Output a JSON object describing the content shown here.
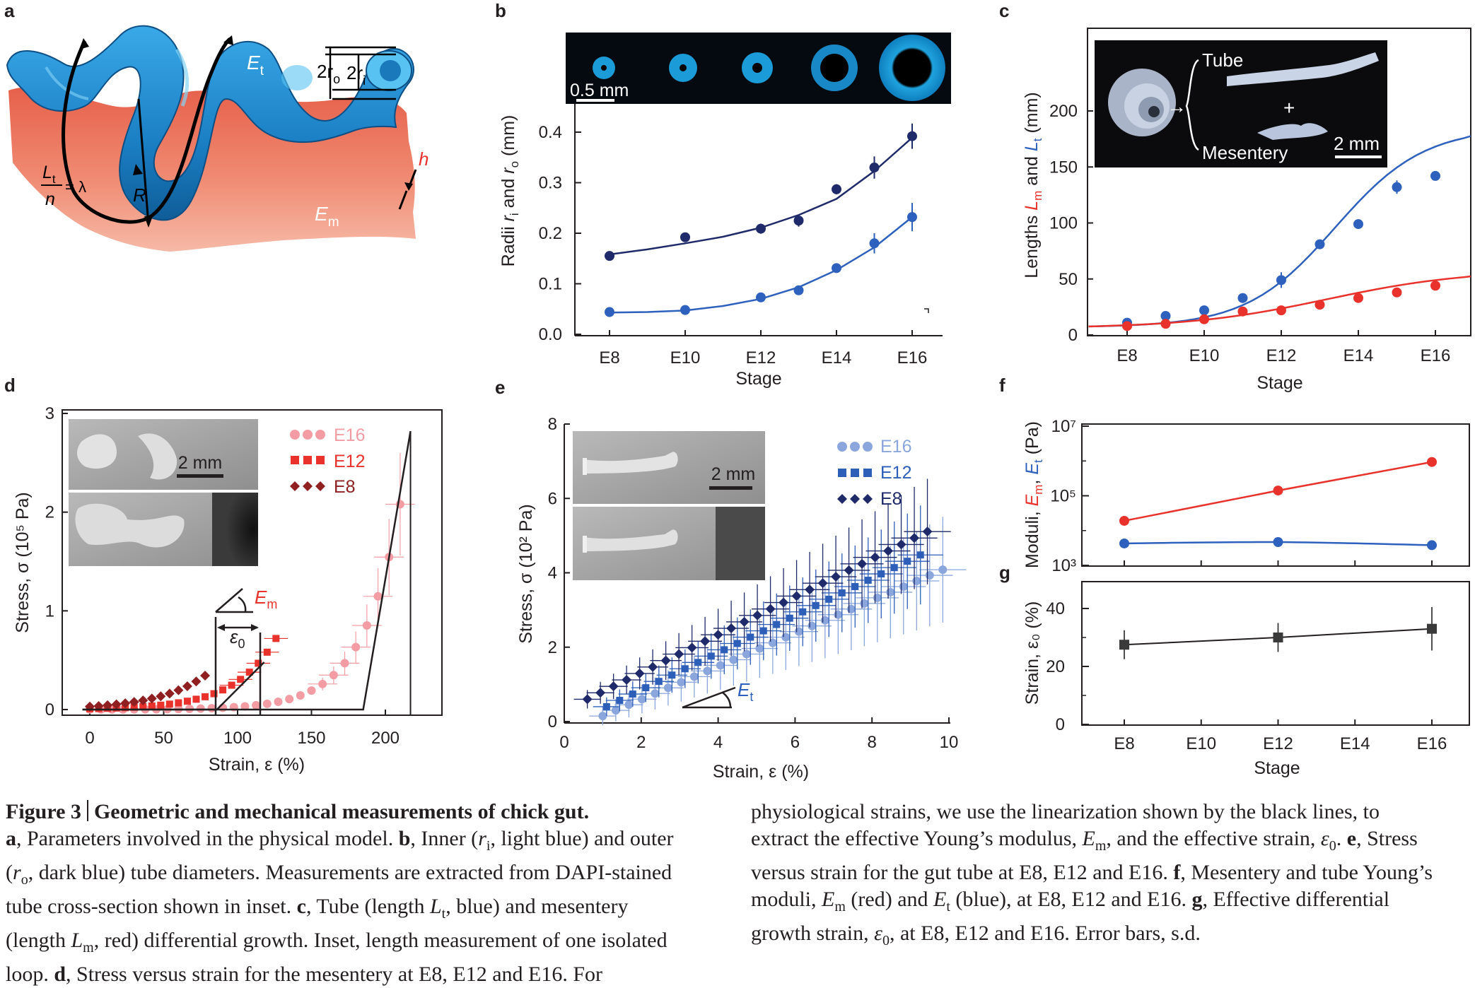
{
  "panels": {
    "a": "a",
    "b": "b",
    "c": "c",
    "d": "d",
    "e": "e",
    "f": "f",
    "g": "g"
  },
  "panel_a": {
    "labels": {
      "Et": "E",
      "Et_sub": "t",
      "Em": "E",
      "Em_sub": "m",
      "R": "R",
      "h": "h",
      "ro": "2r",
      "ro_sub": "o",
      "ri": "2r",
      "ri_sub": "i",
      "Lt": "L",
      "Lt_sub": "t",
      "n": "n",
      "lambda": "= λ"
    },
    "colors": {
      "tube": "#1d8fd0",
      "mesentery": "#ee7d62",
      "red_label": "#e8322b"
    }
  },
  "panel_b": {
    "inset_scale": "0.5 mm",
    "ylabel_parts": [
      "Radii ",
      "r",
      "i",
      " and ",
      "r",
      "o",
      " (mm)"
    ],
    "xlabel": "Stage"
  },
  "panel_c": {
    "inset_tube": "Tube",
    "inset_mesentery": "Mesentery",
    "inset_plus": "+",
    "inset_scale": "2 mm",
    "ylabel_parts": [
      "Lengths ",
      "L",
      "m",
      " and ",
      "L",
      "t",
      " (mm)"
    ],
    "xlabel": "Stage"
  },
  "panel_d": {
    "legend": [
      "E16",
      "E12",
      "E8"
    ],
    "inset_scale": "2 mm",
    "Em_label": "E",
    "Em_sub": "m",
    "eps0_label": "ε",
    "eps0_sub": "0",
    "ylabel": "Stress, σ (10⁵ Pa)",
    "xlabel": "Strain, ε (%)"
  },
  "panel_e": {
    "legend": [
      "E16",
      "E12",
      "E8"
    ],
    "inset_scale": "2 mm",
    "Et_label": "E",
    "Et_sub": "t",
    "ylabel": "Stress, σ (10² Pa)",
    "xlabel": "Strain, ε (%)"
  },
  "panel_f": {
    "ylabel_parts": [
      "Moduli, ",
      "E",
      "m",
      ", ",
      "E",
      "t",
      " (Pa)"
    ]
  },
  "panel_g": {
    "ylabel": "Strain, ε₀ (%)",
    "xlabel": "Stage"
  },
  "chart_data": [
    {
      "panel": "b",
      "type": "line",
      "x": [
        "E8",
        "E10",
        "E12",
        "E13",
        "E14",
        "E15",
        "E16"
      ],
      "xticks": [
        "E8",
        "E10",
        "E12",
        "E14",
        "E16"
      ],
      "xlabel": "Stage",
      "ylabel": "Radii ri and ro (mm)",
      "ylim": [
        0,
        0.42
      ],
      "yticks": [
        "0.0",
        "0.1",
        "0.2",
        "0.3",
        "0.4"
      ],
      "series": [
        {
          "name": "ro",
          "color": "#1f2a6b",
          "points": [
            [
              8,
              0.155,
              0
            ],
            [
              10,
              0.192,
              0
            ],
            [
              12,
              0.209,
              0.01
            ],
            [
              13,
              0.225,
              0.012
            ],
            [
              14,
              0.287,
              0.01
            ],
            [
              15,
              0.33,
              0.022
            ],
            [
              16,
              0.392,
              0.025
            ]
          ],
          "fit": [
            [
              8,
              0.158
            ],
            [
              9,
              0.168
            ],
            [
              10,
              0.18
            ],
            [
              11,
              0.193
            ],
            [
              12,
              0.211
            ],
            [
              13,
              0.236
            ],
            [
              14,
              0.268
            ],
            [
              15,
              0.323
            ],
            [
              16,
              0.389
            ]
          ]
        },
        {
          "name": "ri",
          "color": "#2e60bd",
          "points": [
            [
              8,
              0.044,
              0
            ],
            [
              10,
              0.048,
              0
            ],
            [
              12,
              0.073,
              0
            ],
            [
              13,
              0.087,
              0
            ],
            [
              14,
              0.131,
              0
            ],
            [
              15,
              0.18,
              0.02
            ],
            [
              16,
              0.232,
              0.028
            ]
          ],
          "fit": [
            [
              8,
              0.043
            ],
            [
              9,
              0.044
            ],
            [
              10,
              0.047
            ],
            [
              11,
              0.056
            ],
            [
              12,
              0.07
            ],
            [
              13,
              0.093
            ],
            [
              14,
              0.127
            ],
            [
              15,
              0.172
            ],
            [
              16,
              0.232
            ]
          ]
        }
      ]
    },
    {
      "panel": "c",
      "type": "line",
      "xticks": [
        "E8",
        "E10",
        "E12",
        "E14",
        "E16"
      ],
      "xlabel": "Stage",
      "ylabel": "Lengths Lm and Lt (mm)",
      "ylim": [
        0,
        220
      ],
      "yticks": [
        "0",
        "50",
        "100",
        "150",
        "200"
      ],
      "series": [
        {
          "name": "Lt",
          "color": "#2e60bd",
          "points": [
            [
              8,
              11,
              0
            ],
            [
              9,
              17,
              0
            ],
            [
              10,
              22,
              0
            ],
            [
              11,
              33,
              0
            ],
            [
              12,
              49,
              7
            ],
            [
              13,
              81,
              0
            ],
            [
              14,
              99,
              0
            ],
            [
              15,
              132,
              6
            ],
            [
              16,
              142,
              0
            ]
          ]
        },
        {
          "name": "Lm",
          "color": "#e8322b",
          "points": [
            [
              8,
              8,
              0
            ],
            [
              9,
              10,
              0
            ],
            [
              10,
              14,
              0
            ],
            [
              11,
              21,
              0
            ],
            [
              12,
              22,
              0
            ],
            [
              13,
              27,
              0
            ],
            [
              14,
              33,
              0
            ],
            [
              15,
              38,
              0
            ],
            [
              16,
              44,
              0
            ]
          ]
        }
      ]
    },
    {
      "panel": "d",
      "type": "scatter",
      "xlabel": "Strain, ε (%)",
      "ylabel": "Stress, σ (10⁵ Pa)",
      "xlim": [
        -10,
        230
      ],
      "ylim": [
        -0.05,
        3.02
      ],
      "xticks": [
        "0",
        "50",
        "100",
        "150",
        "200"
      ],
      "yticks": [
        "0",
        "1",
        "2",
        "3"
      ],
      "series": [
        {
          "name": "E16",
          "color": "#f49ca4"
        },
        {
          "name": "E12",
          "color": "#e8322b"
        },
        {
          "name": "E8",
          "color": "#8f1f21"
        }
      ]
    },
    {
      "panel": "e",
      "type": "scatter",
      "xlabel": "Strain, ε (%)",
      "ylabel": "Stress, σ (10² Pa)",
      "xlim": [
        0,
        10
      ],
      "ylim": [
        0,
        8
      ],
      "xticks": [
        "0",
        "2",
        "4",
        "6",
        "8",
        "10"
      ],
      "yticks": [
        "0",
        "2",
        "4",
        "6",
        "8"
      ],
      "series": [
        {
          "name": "E16",
          "color": "#8aa6dc"
        },
        {
          "name": "E12",
          "color": "#2e5fb8"
        },
        {
          "name": "E8",
          "color": "#1f2a6b"
        }
      ]
    },
    {
      "panel": "f",
      "type": "line",
      "yscale": "log",
      "xticks": [
        "E8",
        "E12",
        "E16"
      ],
      "ylabel": "Moduli, Em, Et (Pa)",
      "yticks": [
        "10³",
        "10⁵",
        "10⁷"
      ],
      "series": [
        {
          "name": "Em",
          "color": "#e8322b",
          "x": [
            "E8",
            "E12",
            "E16"
          ],
          "log10_values": [
            4.28,
            5.15,
            5.97
          ]
        },
        {
          "name": "Et",
          "color": "#2e60bd",
          "x": [
            "E8",
            "E12",
            "E16"
          ],
          "log10_values": [
            3.63,
            3.67,
            3.58
          ]
        }
      ]
    },
    {
      "panel": "g",
      "type": "line",
      "xticks": [
        "E8",
        "E10",
        "E12",
        "E14",
        "E16"
      ],
      "xlabel": "Stage",
      "ylabel": "Strain, ε0 (%)",
      "ylim": [
        0,
        50
      ],
      "yticks": [
        "0",
        "20",
        "40"
      ],
      "series": [
        {
          "name": "ε0",
          "color": "#3a3a3a",
          "x": [
            "E8",
            "E12",
            "E16"
          ],
          "values": [
            27.5,
            30,
            33
          ],
          "err": [
            5,
            5,
            7.5
          ]
        }
      ]
    }
  ],
  "caption": {
    "title_num": "Figure 3",
    "title_text": "Geometric and mechanical measurements of chick gut.",
    "left_lines": [
      [
        [
          "b",
          "a"
        ],
        [
          "",
          ", Parameters involved in the physical model. "
        ],
        [
          "b",
          "b"
        ],
        [
          "",
          ", Inner ("
        ],
        [
          "i",
          "r"
        ],
        [
          "sub",
          "i"
        ],
        [
          "",
          ", light blue) and outer"
        ]
      ],
      [
        [
          "",
          "("
        ],
        [
          "i",
          "r"
        ],
        [
          "sub",
          "o"
        ],
        [
          "",
          ", dark blue) tube diameters. Measurements are extracted from DAPI-stained"
        ]
      ],
      [
        [
          "",
          "tube cross-section shown in inset. "
        ],
        [
          "b",
          "c"
        ],
        [
          "",
          ", Tube (length "
        ],
        [
          "i",
          "L"
        ],
        [
          "sub",
          "t"
        ],
        [
          "",
          ", blue) and mesentery"
        ]
      ],
      [
        [
          "",
          "(length "
        ],
        [
          "i",
          "L"
        ],
        [
          "sub",
          "m"
        ],
        [
          "",
          ", red) differential growth. Inset, length measurement of one isolated"
        ]
      ],
      [
        [
          "",
          "loop. "
        ],
        [
          "b",
          "d"
        ],
        [
          "",
          ", Stress versus strain for the mesentery at E8, E12 and E16. For"
        ]
      ]
    ],
    "right_lines": [
      [
        [
          "",
          "physiological strains, we use the linearization shown by the black lines, to"
        ]
      ],
      [
        [
          "",
          "extract the effective Young’s modulus, "
        ],
        [
          "i",
          "E"
        ],
        [
          "sub",
          "m"
        ],
        [
          "",
          ", and the effective strain, "
        ],
        [
          "i",
          "ε"
        ],
        [
          "sub",
          "0"
        ],
        [
          "",
          ". "
        ],
        [
          "b",
          "e"
        ],
        [
          "",
          ", Stress"
        ]
      ],
      [
        [
          "",
          "versus strain for the gut tube at E8, E12 and E16. "
        ],
        [
          "b",
          "f"
        ],
        [
          "",
          ", Mesentery and tube Young’s"
        ]
      ],
      [
        [
          "",
          "moduli, "
        ],
        [
          "i",
          "E"
        ],
        [
          "sub",
          "m"
        ],
        [
          "",
          " (red) and "
        ],
        [
          "i",
          "E"
        ],
        [
          "sub",
          "t"
        ],
        [
          "",
          " (blue), at E8, E12 and E16. "
        ],
        [
          "b",
          "g"
        ],
        [
          "",
          ", Effective differential"
        ]
      ],
      [
        [
          "",
          "growth strain, "
        ],
        [
          "i",
          "ε"
        ],
        [
          "sub",
          "0"
        ],
        [
          "",
          ", at E8, E12 and E16. Error bars, s.d."
        ]
      ]
    ]
  }
}
